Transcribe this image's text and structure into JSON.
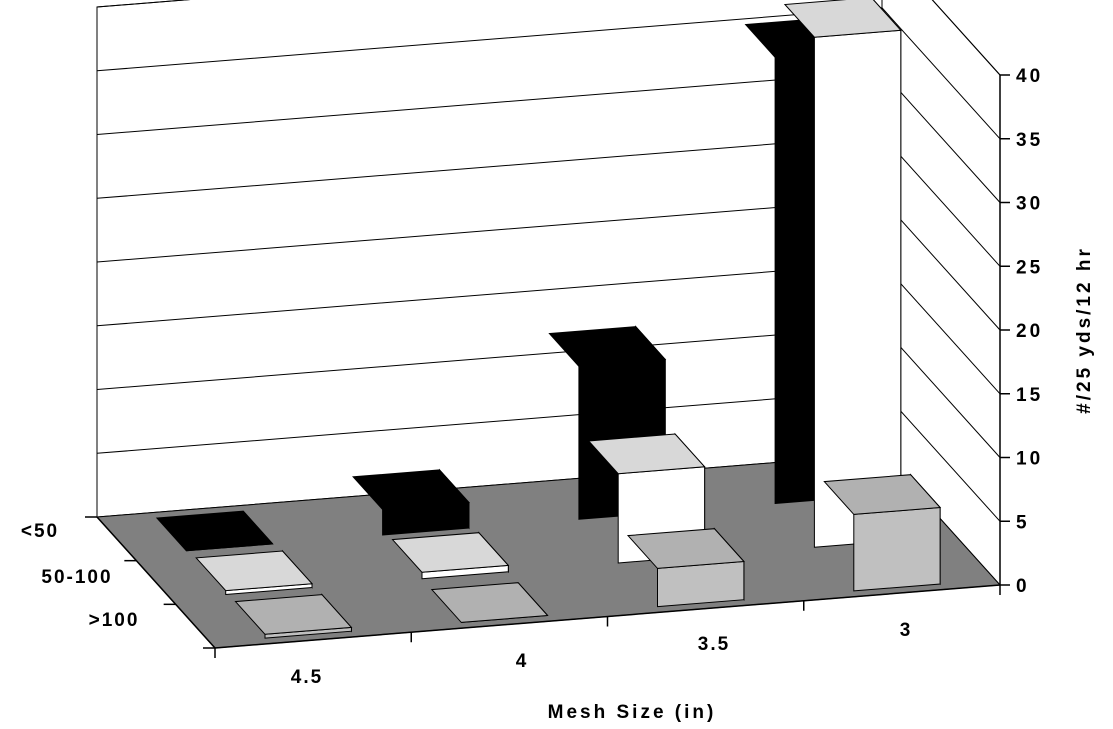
{
  "chart_data": {
    "type": "bar",
    "subtype": "3d-column",
    "title": "",
    "xlabel": "Mesh Size (in)",
    "ylabel": "#/25 yds/12 hr",
    "categories": [
      "4.5",
      "4",
      "3.5",
      "3"
    ],
    "series_axis_labels": [
      "<50",
      "50-100",
      ">100"
    ],
    "ylim": [
      0,
      40
    ],
    "yticks": [
      "0",
      "5",
      "10",
      "15",
      "20",
      "25",
      "30",
      "35",
      "40"
    ],
    "series": [
      {
        "name": "<50",
        "color": "#000000",
        "values": [
          0,
          2,
          12,
          35
        ]
      },
      {
        "name": "50-100",
        "color": "#ffffff",
        "values": [
          0.3,
          0.5,
          7,
          40
        ]
      },
      {
        "name": ">100",
        "color": "#c0c0c0",
        "values": [
          0.3,
          0,
          3,
          6
        ]
      }
    ],
    "floor_color": "#808080",
    "grid": true
  }
}
